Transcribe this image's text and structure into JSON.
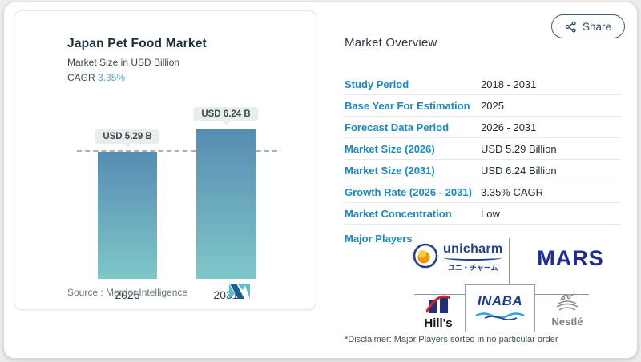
{
  "share_button": {
    "label": "Share"
  },
  "chart_card": {
    "title": "Japan Pet Food Market",
    "subtitle": "Market Size in USD Billion",
    "cagr_label": "CAGR",
    "cagr_value": "3.35%",
    "source_label": "Source :",
    "source_name": "Mordor Intelligence"
  },
  "chart_data": {
    "type": "bar",
    "title": "Japan Pet Food Market",
    "ylabel": "Market Size in USD Billion",
    "categories": [
      "2026",
      "2031"
    ],
    "values": [
      5.29,
      6.24
    ],
    "bar_labels": [
      "USD 5.29 B",
      "USD 6.24 B"
    ],
    "unit": "USD Billion",
    "cagr": "3.35%",
    "ylim": [
      0,
      6.5
    ],
    "reference_line_value": 5.29,
    "grid": false,
    "legend": false,
    "bar_gradient_top": "#568cb3",
    "bar_gradient_bottom": "#7fc7c9"
  },
  "overview": {
    "title": "Market Overview",
    "rows": [
      {
        "label": "Study Period",
        "value": "2018 - 2031"
      },
      {
        "label": "Base Year For Estimation",
        "value": "2025"
      },
      {
        "label": "Forecast Data Period",
        "value": "2026 - 2031"
      },
      {
        "label": "Market Size (2026)",
        "value": "USD 5.29 Billion"
      },
      {
        "label": "Market Size (2031)",
        "value": "USD 6.24 Billion"
      },
      {
        "label": "Growth Rate (2026 - 2031)",
        "value": "3.35% CAGR"
      },
      {
        "label": "Market Concentration",
        "value": "Low"
      }
    ],
    "major_players_label": "Major Players",
    "disclaimer": "*Disclaimer: Major Players sorted in no particular order"
  },
  "players": {
    "unicharm": {
      "name": "unicharm",
      "subtitle": "ユニ・チャーム"
    },
    "mars": {
      "name": "MARS"
    },
    "hills": {
      "name": "Hill's"
    },
    "inaba": {
      "name": "INABA"
    },
    "nestle": {
      "name": "Nestlé"
    }
  },
  "colors": {
    "label_blue": "#1b87c5",
    "accent_blue": "#56a5cd",
    "value_dark": "#1d2932",
    "mars_navy": "#1d2b96",
    "inaba_blue": "#1d3d8f",
    "unicharm_blue": "#24418e",
    "nestle_gray": "#7d7d7d",
    "dashed_line": "#a8b2b6"
  }
}
